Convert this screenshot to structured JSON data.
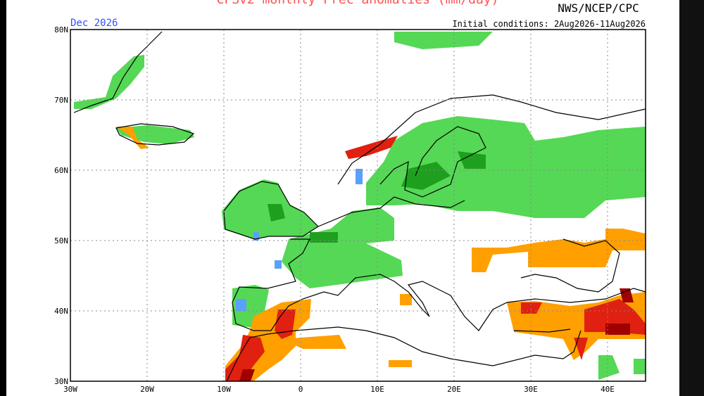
{
  "header": {
    "title": "CFSv2 monthly Prec anomalies (mm/day)",
    "source": "NWS/NCEP/CPC"
  },
  "map": {
    "month_label": "Dec 2026",
    "initial_conditions": "Initial conditions: 2Aug2026-11Aug2026",
    "lat_labels": [
      "80N",
      "70N",
      "60N",
      "50N",
      "40N",
      "30N"
    ],
    "lon_labels": [
      "30W",
      "20W",
      "10W",
      "0",
      "10E",
      "20E",
      "30E",
      "40E"
    ]
  }
}
